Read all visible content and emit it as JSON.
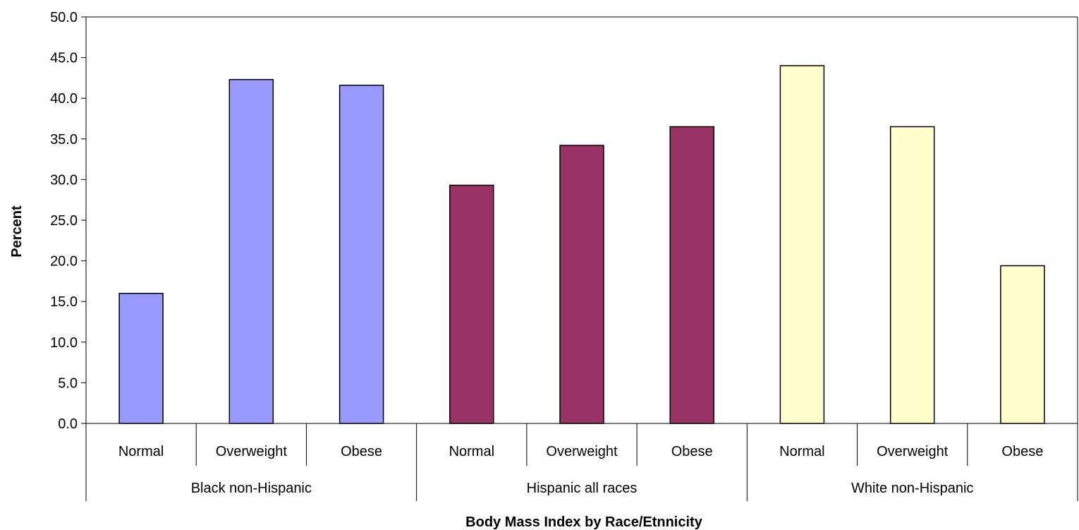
{
  "chart_data": {
    "type": "bar",
    "title": "",
    "xlabel": "Body Mass Index by Race/Etnnicity",
    "ylabel": "Percent",
    "ylim": [
      0,
      50
    ],
    "ytick_step": 5,
    "ytick_labels": [
      "0.0",
      "5.0",
      "10.0",
      "15.0",
      "20.0",
      "25.0",
      "30.0",
      "35.0",
      "40.0",
      "45.0",
      "50.0"
    ],
    "grid": false,
    "legend": "none",
    "groups": [
      {
        "name": "Black non-Hispanic",
        "color": "#9999ff",
        "categories": [
          "Normal",
          "Overweight",
          "Obese"
        ],
        "values": [
          16.0,
          42.3,
          41.6
        ]
      },
      {
        "name": "Hispanic all races",
        "color": "#993366",
        "categories": [
          "Normal",
          "Overweight",
          "Obese"
        ],
        "values": [
          29.3,
          34.2,
          36.5
        ]
      },
      {
        "name": "White non-Hispanic",
        "color": "#ffffcc",
        "categories": [
          "Normal",
          "Overweight",
          "Obese"
        ],
        "values": [
          44.0,
          36.5,
          19.4
        ]
      }
    ]
  }
}
